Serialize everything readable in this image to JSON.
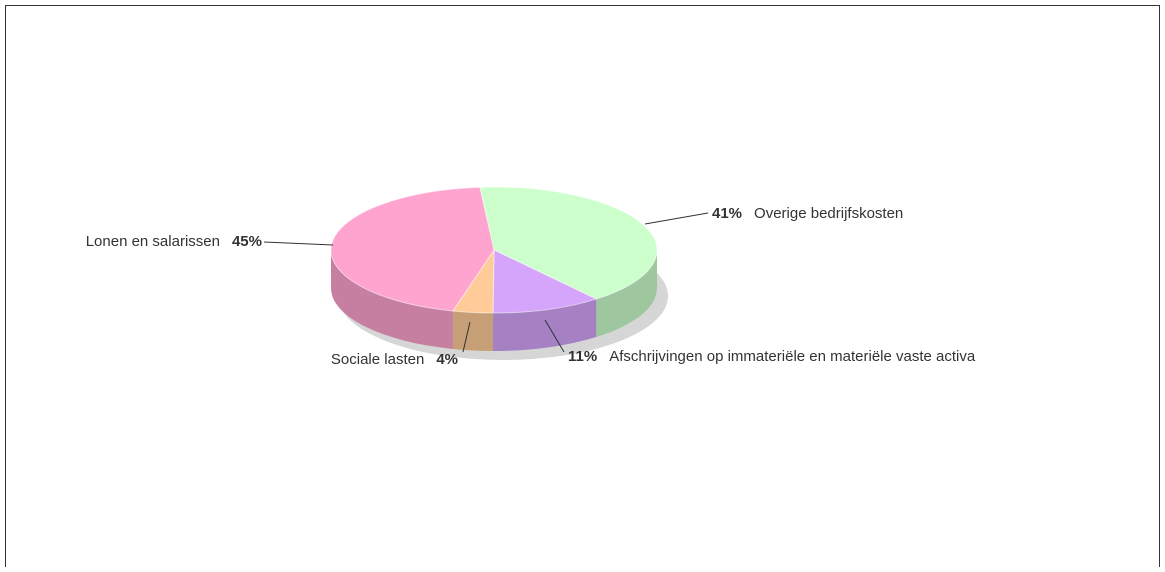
{
  "chart_data": {
    "type": "pie",
    "categories": [
      "Overige bedrijfskosten",
      "Afschrijvingen op immateriële en materiële vaste activa",
      "Sociale lasten",
      "Lonen en salarissen"
    ],
    "values": [
      41,
      11,
      4,
      45
    ],
    "value_labels": [
      "41%",
      "11%",
      "4%",
      "45%"
    ],
    "colors": [
      "#ccffcc",
      "#d4a5fa",
      "#ffcc99",
      "#ffa3cf"
    ]
  }
}
